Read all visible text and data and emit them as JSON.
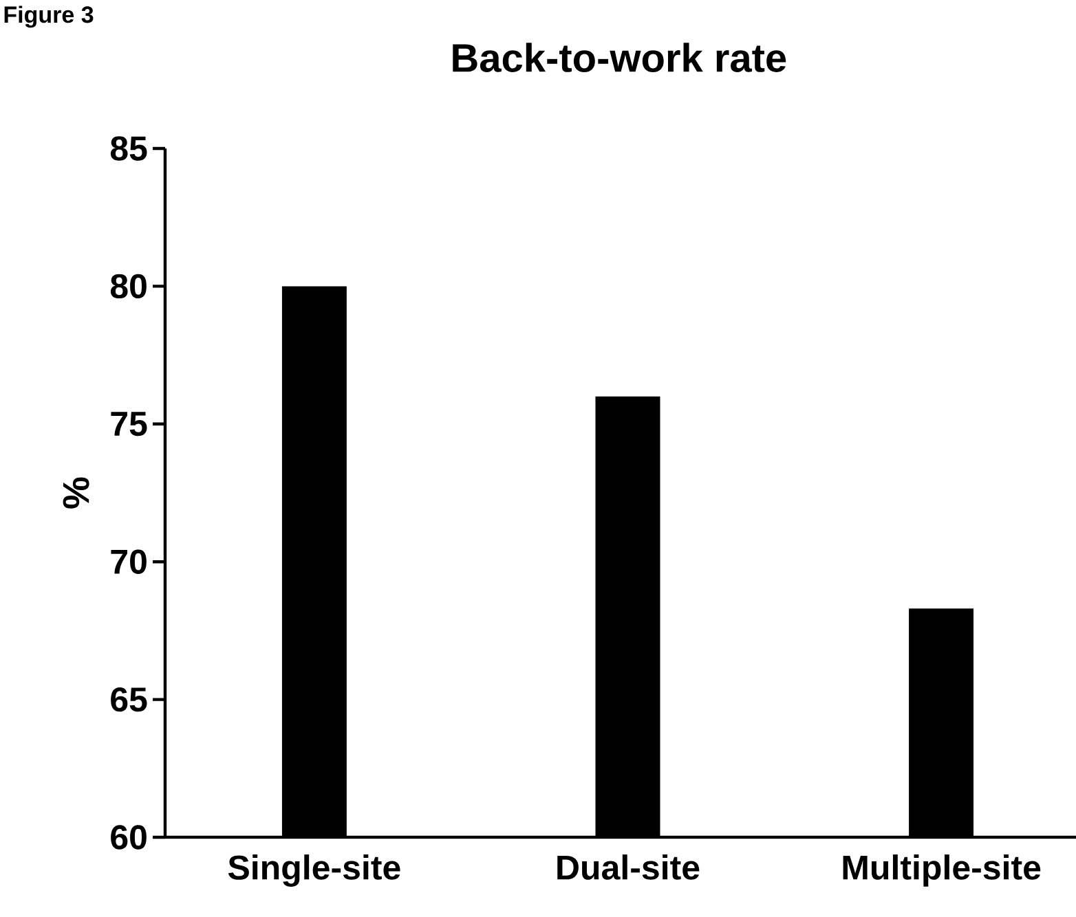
{
  "chart_data": {
    "type": "bar",
    "title": "Back-to-work rate",
    "ylabel": "%",
    "annotations": [
      "Figure 3"
    ],
    "categories": [
      "Single-site",
      "Dual-site",
      "Multiple-site"
    ],
    "values": [
      80,
      76,
      68.3
    ],
    "color": "#000000",
    "ylim": [
      60,
      85
    ],
    "yticks": [
      60,
      65,
      70,
      75,
      80,
      85
    ]
  }
}
